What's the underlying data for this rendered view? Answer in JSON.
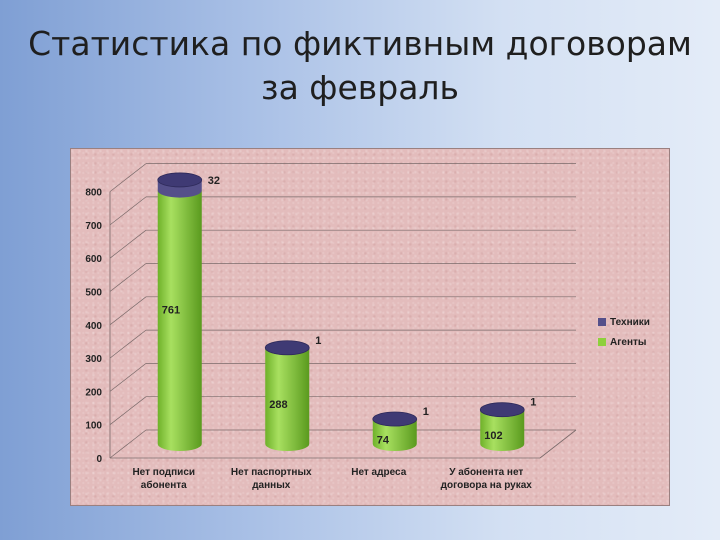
{
  "title": {
    "line1": "Статистика по фиктивным договорам",
    "line2": "за февраль"
  },
  "chart_data": {
    "type": "bar",
    "style": "3d-cylinder-stacked",
    "categories": [
      [
        "Нет подписи",
        "абонента"
      ],
      [
        "Нет паспортных",
        "данных"
      ],
      [
        "Нет адреса"
      ],
      [
        "У абонента нет",
        "договора на руках"
      ]
    ],
    "series": [
      {
        "name": "Агенты",
        "values": [
          761,
          288,
          74,
          102
        ],
        "color": "#8ed03c"
      },
      {
        "name": "Техники",
        "values": [
          32,
          1,
          1,
          1
        ],
        "color": "#55508a"
      }
    ],
    "yticks": [
      "0",
      "100",
      "200",
      "300",
      "400",
      "500",
      "600",
      "700",
      "800"
    ],
    "ylim": [
      0,
      800
    ],
    "grid": true,
    "legend_position": "right",
    "legend_order": [
      "Техники",
      "Агенты"
    ]
  }
}
